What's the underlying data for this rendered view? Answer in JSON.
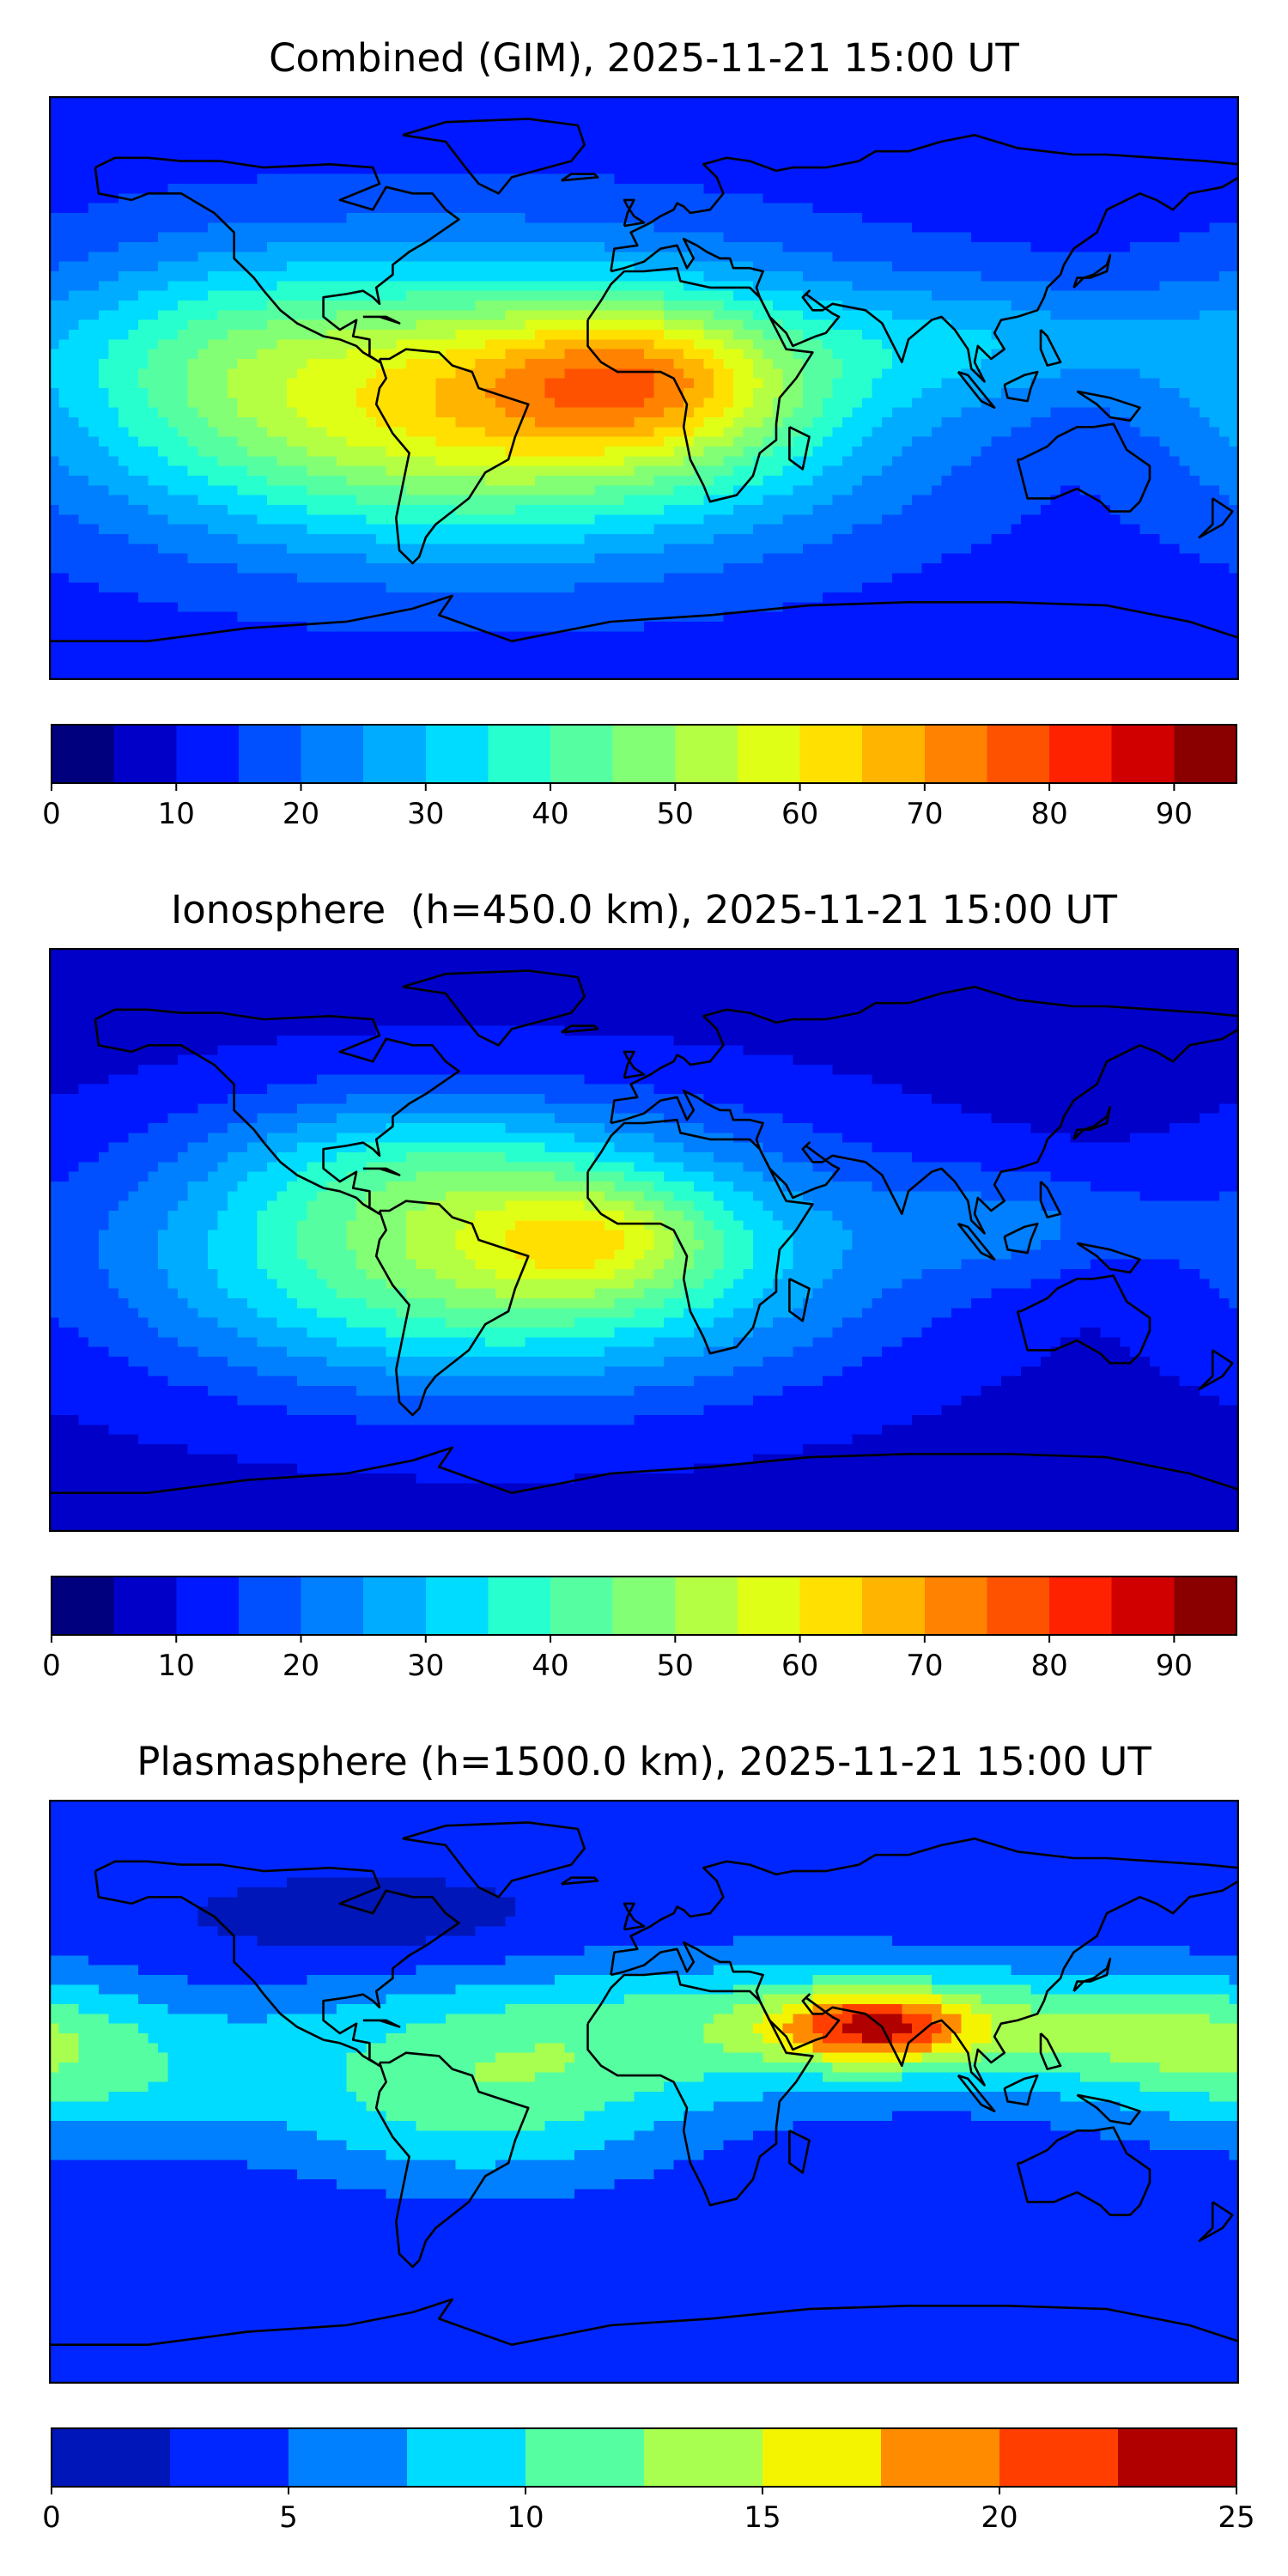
{
  "chart_data": [
    {
      "type": "heatmap",
      "title": "Combined (GIM), 2025-11-21 15:00 UT",
      "levels": [
        0,
        5,
        10,
        15,
        20,
        25,
        30,
        35,
        40,
        45,
        50,
        55,
        60,
        65,
        70,
        75,
        80,
        85,
        90,
        95
      ],
      "colors": [
        "#00007f",
        "#0000c8",
        "#0018ff",
        "#0050ff",
        "#0080ff",
        "#00acff",
        "#00dcff",
        "#28ffce",
        "#55ffa1",
        "#82ff74",
        "#b4ff43",
        "#e0ff16",
        "#ffe000",
        "#ffb400",
        "#ff8200",
        "#ff5200",
        "#ff2200",
        "#d10000",
        "#8a0000"
      ],
      "colorbar_ticks": [
        0,
        10,
        20,
        30,
        40,
        50,
        60,
        70,
        80,
        90
      ],
      "background_value": 12,
      "blobs": [
        {
          "lon": -50,
          "lat": -5,
          "slon": 80,
          "slat": 30,
          "value": 50
        },
        {
          "lon": 0,
          "lat": 3,
          "slon": 32,
          "slat": 16,
          "value": 24
        },
        {
          "lon": 110,
          "lat": 15,
          "slon": 45,
          "slat": 14,
          "value": 12
        },
        {
          "lon": -130,
          "lat": 15,
          "slon": 35,
          "slat": 22,
          "value": 8
        }
      ]
    },
    {
      "type": "heatmap",
      "title": "Ionosphere  (h=450.0 km), 2025-11-21 15:00 UT",
      "levels": [
        0,
        5,
        10,
        15,
        20,
        25,
        30,
        35,
        40,
        45,
        50,
        55,
        60,
        65,
        70,
        75,
        80,
        85,
        90,
        95
      ],
      "colors": [
        "#00007f",
        "#0000c8",
        "#0018ff",
        "#0050ff",
        "#0080ff",
        "#00acff",
        "#00dcff",
        "#28ffce",
        "#55ffa1",
        "#82ff74",
        "#b4ff43",
        "#e0ff16",
        "#ffe000",
        "#ffb400",
        "#ff8200",
        "#ff5200",
        "#ff2200",
        "#d10000",
        "#8a0000"
      ],
      "colorbar_ticks": [
        0,
        10,
        20,
        30,
        40,
        50,
        60,
        70,
        80,
        90
      ],
      "background_value": 8,
      "blobs": [
        {
          "lon": -45,
          "lat": -5,
          "slon": 75,
          "slat": 28,
          "value": 42
        },
        {
          "lon": -15,
          "lat": 0,
          "slon": 25,
          "slat": 12,
          "value": 16
        },
        {
          "lon": 115,
          "lat": 5,
          "slon": 30,
          "slat": 12,
          "value": 10
        },
        {
          "lon": -70,
          "lat": 25,
          "slon": 40,
          "slat": 15,
          "value": 10
        }
      ]
    },
    {
      "type": "heatmap",
      "title": "Plasmasphere (h=1500.0 km), 2025-11-21 15:00 UT",
      "levels": [
        0,
        2.5,
        5,
        7.5,
        10,
        12.5,
        15,
        17.5,
        20,
        22.5,
        25
      ],
      "colors": [
        "#0016b8",
        "#0026ff",
        "#0080ff",
        "#00dcff",
        "#55ffa1",
        "#a8ff50",
        "#f4f400",
        "#ff8c00",
        "#ff3e00",
        "#b00000"
      ],
      "colorbar_ticks": [
        0,
        5,
        10,
        15,
        20,
        25
      ],
      "background_value": 3,
      "blobs": [
        {
          "lon": 40,
          "lat": 20,
          "slon": 100,
          "slat": 16,
          "value": 8
        },
        {
          "lon": 70,
          "lat": 20,
          "slon": 22,
          "slat": 8,
          "value": 13
        },
        {
          "lon": -50,
          "lat": -5,
          "slon": 45,
          "slat": 18,
          "value": 7
        },
        {
          "lon": -170,
          "lat": 5,
          "slon": 40,
          "slat": 16,
          "value": 6
        },
        {
          "lon": 150,
          "lat": 20,
          "slon": 35,
          "slat": 12,
          "value": 4
        },
        {
          "lon": -80,
          "lat": 50,
          "slon": 40,
          "slat": 10,
          "value": -2
        }
      ]
    }
  ],
  "map_projection": "PlateCarree",
  "lon_range": [
    -180,
    180
  ],
  "lat_range": [
    -90,
    90
  ]
}
